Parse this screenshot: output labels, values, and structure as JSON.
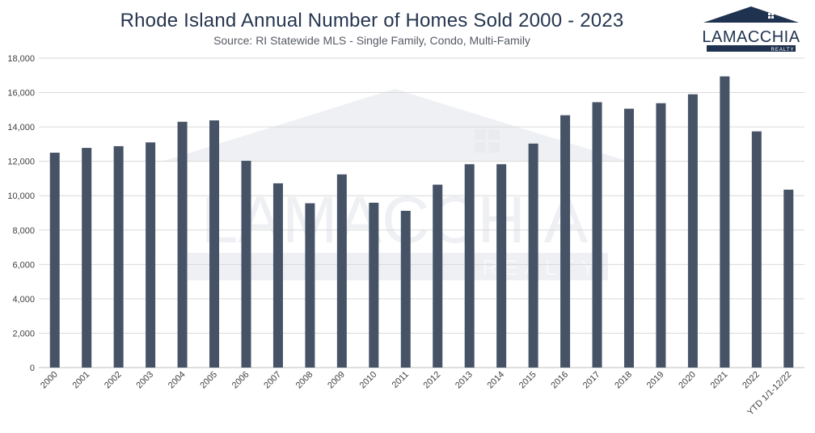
{
  "chart_data": {
    "type": "bar",
    "title": "Rhode Island Annual Number of Homes Sold 2000 - 2023",
    "subtitle": "Source: RI Statewide MLS - Single Family, Condo, Multi-Family",
    "categories": [
      "2000",
      "2001",
      "2002",
      "2003",
      "2004",
      "2005",
      "2006",
      "2007",
      "2008",
      "2009",
      "2010",
      "2011",
      "2012",
      "2013",
      "2014",
      "2015",
      "2016",
      "2017",
      "2018",
      "2019",
      "2020",
      "2021",
      "2022",
      "YTD 1/1-12/22"
    ],
    "values": [
      12500,
      12780,
      12880,
      13100,
      14300,
      14380,
      12030,
      10720,
      9560,
      11240,
      9590,
      9120,
      10640,
      11830,
      11830,
      13030,
      14680,
      15440,
      15060,
      15380,
      15900,
      16940,
      13740,
      10350
    ],
    "ylim": [
      0,
      18000
    ],
    "yticks": [
      0,
      2000,
      4000,
      6000,
      8000,
      10000,
      12000,
      14000,
      16000,
      18000
    ],
    "ytick_labels": [
      "0",
      "2,000",
      "4,000",
      "6,000",
      "8,000",
      "10,000",
      "12,000",
      "14,000",
      "16,000",
      "18,000"
    ],
    "xlabel": "",
    "ylabel": "",
    "grid": true,
    "legend": "none",
    "colors": {
      "bar": "#465366",
      "grid": "#d9d9d9",
      "title": "#26364f"
    }
  },
  "logo": {
    "name": "LAMACCHIA",
    "tagline": "REALTY",
    "color": "#1f3350"
  },
  "watermark": {
    "name": "LAMACCHIA",
    "tagline": "REALTY"
  }
}
